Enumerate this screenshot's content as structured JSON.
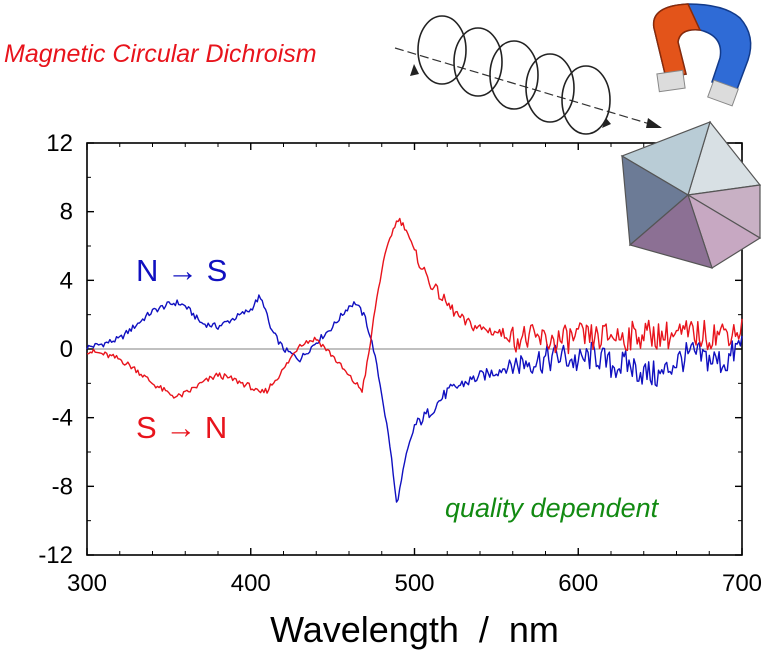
{
  "colors": {
    "n_to_s": "#1010c0",
    "s_to_n": "#e8141c",
    "zero_line": "#9a9a9a",
    "axis": "#000000",
    "title": "#e8141c",
    "note": "#128a12"
  },
  "icons": {
    "beam": "circularly-polarized-light-helix-icon",
    "magnet": "horseshoe-magnet-icon",
    "crystal": "octahedral-crystal-icon"
  },
  "chart_data": {
    "type": "line",
    "title": "Magnetic Circular Dichroism",
    "xlabel": "Wavelength  /  nm",
    "ylabel": "",
    "xlim": [
      300,
      700
    ],
    "ylim": [
      -12,
      12
    ],
    "xticks": [
      "300",
      "400",
      "500",
      "600",
      "700"
    ],
    "yticks": [
      "12",
      "8",
      "4",
      "0",
      "-4",
      "-8",
      "-12"
    ],
    "grid": false,
    "zero_line": true,
    "legend": "none",
    "annotations": [
      {
        "text": "N → S",
        "series": "N → S"
      },
      {
        "text": "S → N",
        "series": "S → N"
      },
      {
        "text": "quality dependent"
      }
    ],
    "series": [
      {
        "name": "N → S",
        "x": [
          300,
          310,
          320,
          330,
          340,
          350,
          355,
          360,
          370,
          380,
          390,
          400,
          405,
          408,
          412,
          420,
          430,
          440,
          450,
          460,
          464,
          470,
          475,
          480,
          485,
          489,
          491,
          495,
          500,
          510,
          520,
          530,
          540,
          550,
          560,
          570,
          580,
          590,
          600,
          610,
          620,
          630,
          640,
          650,
          660,
          670,
          680,
          690,
          700
        ],
        "y": [
          0.1,
          0.3,
          0.6,
          1.4,
          2.2,
          2.6,
          2.7,
          2.5,
          1.5,
          1.3,
          1.8,
          2.3,
          3.0,
          2.6,
          1.2,
          0.0,
          -0.6,
          0.4,
          1.3,
          2.5,
          2.7,
          1.8,
          0.0,
          -2.6,
          -5.6,
          -9.0,
          -8.2,
          -6.2,
          -4.5,
          -3.6,
          -2.5,
          -2.0,
          -1.6,
          -1.3,
          -0.9,
          -0.7,
          -0.6,
          -0.4,
          -0.8,
          -0.3,
          -1.0,
          -0.9,
          -1.4,
          -1.6,
          -0.7,
          -0.3,
          -0.6,
          -0.8,
          0.4
        ]
      },
      {
        "name": "S → N",
        "x": [
          300,
          310,
          320,
          330,
          340,
          350,
          355,
          360,
          370,
          380,
          390,
          400,
          405,
          410,
          420,
          430,
          440,
          450,
          460,
          468,
          472,
          476,
          480,
          485,
          490,
          495,
          500,
          510,
          520,
          530,
          540,
          550,
          560,
          570,
          580,
          590,
          600,
          610,
          620,
          630,
          640,
          650,
          660,
          670,
          680,
          690,
          700
        ],
        "y": [
          -0.1,
          -0.3,
          -0.6,
          -1.2,
          -2.0,
          -2.6,
          -2.8,
          -2.6,
          -2.0,
          -1.5,
          -1.8,
          -2.2,
          -2.6,
          -2.4,
          -1.2,
          0.3,
          0.6,
          -0.4,
          -1.6,
          -2.4,
          -0.4,
          2.4,
          4.6,
          6.5,
          7.6,
          7.0,
          5.6,
          3.8,
          2.6,
          1.6,
          1.2,
          1.0,
          0.7,
          0.6,
          0.5,
          0.5,
          0.7,
          0.6,
          0.8,
          0.7,
          0.9,
          0.8,
          0.8,
          0.9,
          0.8,
          1.0,
          1.1
        ]
      }
    ]
  }
}
